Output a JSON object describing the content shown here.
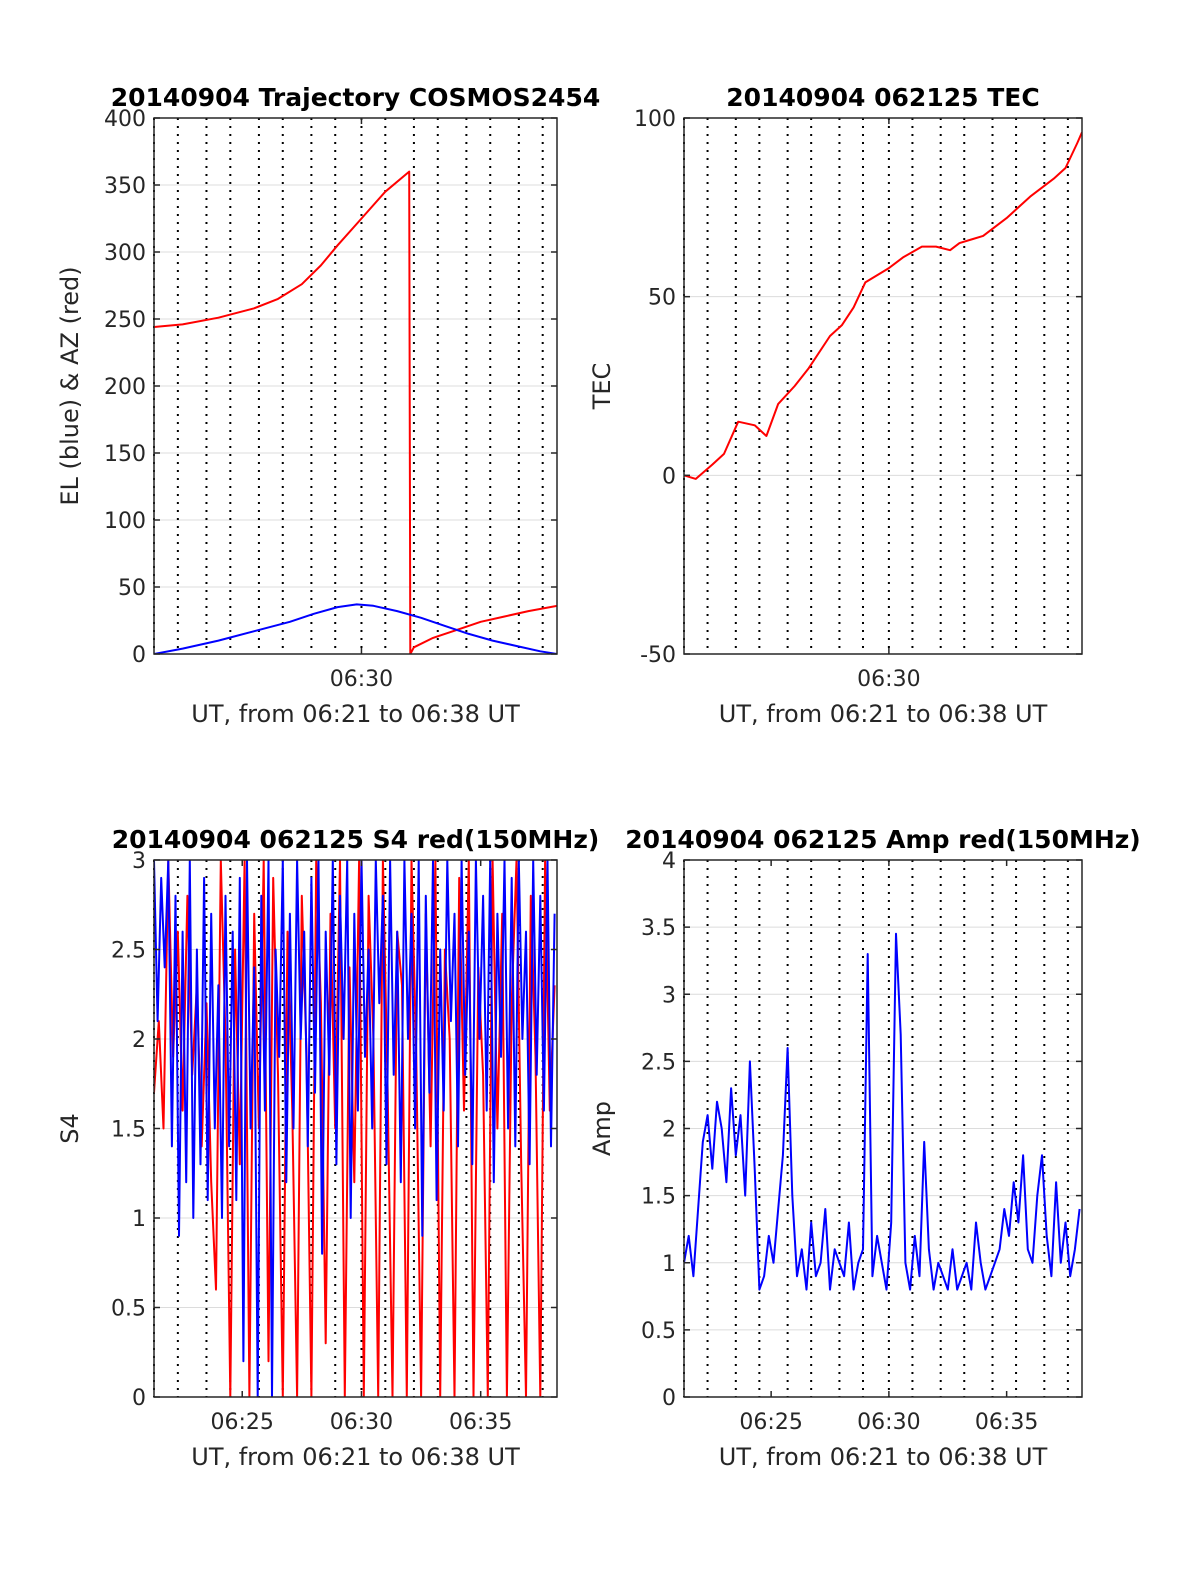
{
  "colors": {
    "red": "#ff0000",
    "blue": "#0000ff",
    "axis": "#262626",
    "grid": "#dcdcdc",
    "vline": "#000000"
  },
  "chart_data": [
    {
      "type": "line",
      "title": "20140904 Trajectory COSMOS2454",
      "xlabel": "UT, from 06:21 to 06:38 UT",
      "ylabel": "EL (blue) & AZ (red)",
      "xlim": [
        21.3,
        38.2
      ],
      "ylim": [
        0,
        400
      ],
      "yticks": [
        0,
        50,
        100,
        150,
        200,
        250,
        300,
        350,
        400
      ],
      "xticks": [
        {
          "v": 30,
          "label": "06:30"
        }
      ],
      "vlines": [
        21.3,
        22.3,
        23.5,
        24.5,
        25.7,
        26.7,
        27.9,
        28.9,
        30.0,
        31.0,
        32.2,
        33.2,
        34.4,
        35.4,
        36.6,
        37.6
      ],
      "series": [
        {
          "name": "AZ",
          "color": "#ff0000",
          "x": [
            21.3,
            22.5,
            24.0,
            25.5,
            26.5,
            27.5,
            28.3,
            29.0,
            30.0,
            31.0,
            32.0,
            32.05,
            32.2,
            33.0,
            34.0,
            35.0,
            36.0,
            37.0,
            38.2
          ],
          "y": [
            244,
            246,
            251,
            258,
            265,
            276,
            290,
            305,
            325,
            345,
            360,
            0,
            5,
            12,
            18,
            24,
            28,
            32,
            36
          ]
        },
        {
          "name": "EL",
          "color": "#0000ff",
          "x": [
            21.3,
            22.5,
            24.0,
            25.5,
            27.0,
            28.0,
            29.0,
            29.8,
            30.5,
            31.5,
            32.5,
            33.5,
            34.5,
            35.5,
            36.5,
            37.5,
            38.2
          ],
          "y": [
            0,
            4,
            10,
            17,
            24,
            30,
            35,
            37,
            36,
            32,
            27,
            21,
            15,
            10,
            6,
            2,
            0
          ]
        }
      ]
    },
    {
      "type": "line",
      "title": "20140904 062125 TEC",
      "xlabel": "UT, from 06:21 to 06:38 UT",
      "ylabel": "TEC",
      "xlim": [
        21.3,
        38.2
      ],
      "ylim": [
        -50,
        100
      ],
      "yticks": [
        -50,
        0,
        50,
        100
      ],
      "xticks": [
        {
          "v": 30,
          "label": "06:30"
        }
      ],
      "vlines": [
        21.3,
        22.3,
        23.5,
        24.5,
        25.7,
        26.7,
        27.9,
        28.9,
        30.0,
        31.0,
        32.2,
        33.2,
        34.4,
        35.4,
        36.6,
        37.6
      ],
      "series": [
        {
          "name": "TEC",
          "color": "#ff0000",
          "x": [
            21.3,
            21.8,
            22.5,
            23.0,
            23.6,
            24.3,
            24.8,
            25.3,
            26.0,
            26.6,
            27.5,
            28.0,
            28.5,
            29.0,
            30.0,
            30.6,
            31.4,
            32.0,
            32.6,
            33.0,
            33.5,
            34.0,
            35.0,
            36.0,
            37.0,
            37.5,
            38.0,
            38.2
          ],
          "y": [
            0,
            -1,
            3,
            6,
            15,
            14,
            11,
            20,
            25,
            30,
            39,
            42,
            47,
            54,
            58,
            61,
            64,
            64,
            63,
            65,
            66,
            67,
            72,
            78,
            83,
            86,
            93,
            96
          ]
        }
      ]
    },
    {
      "type": "line",
      "title": "20140904 062125 S4 red(150MHz)",
      "xlabel": "UT, from 06:21 to 06:38 UT",
      "ylabel": "S4",
      "xlim": [
        21.3,
        38.2
      ],
      "ylim": [
        0,
        3
      ],
      "yticks": [
        0,
        0.5,
        1,
        1.5,
        2,
        2.5,
        3
      ],
      "xticks": [
        {
          "v": 25,
          "label": "06:25"
        },
        {
          "v": 30,
          "label": "06:30"
        },
        {
          "v": 35,
          "label": "06:35"
        }
      ],
      "vlines": [
        21.3,
        22.3,
        23.5,
        24.5,
        25.7,
        26.7,
        27.9,
        28.9,
        30.0,
        31.0,
        32.2,
        33.2,
        34.4,
        35.4,
        36.6,
        37.6
      ],
      "series": [
        {
          "name": "S4 red",
          "color": "#ff0000",
          "x": [
            21.3,
            21.5,
            21.7,
            21.9,
            22.1,
            22.3,
            22.5,
            22.7,
            22.9,
            23.1,
            23.3,
            23.5,
            23.7,
            23.9,
            24.1,
            24.3,
            24.5,
            24.7,
            24.9,
            25.1,
            25.3,
            25.5,
            25.7,
            25.9,
            26.1,
            26.3,
            26.5,
            26.7,
            26.9,
            27.1,
            27.3,
            27.5,
            27.7,
            27.9,
            28.1,
            28.3,
            28.5,
            28.7,
            28.9,
            29.1,
            29.3,
            29.5,
            29.7,
            29.9,
            30.1,
            30.3,
            30.5,
            30.7,
            30.9,
            31.1,
            31.3,
            31.5,
            31.7,
            31.9,
            32.1,
            32.3,
            32.5,
            32.7,
            32.9,
            33.1,
            33.3,
            33.5,
            33.7,
            33.9,
            34.1,
            34.3,
            34.5,
            34.7,
            34.9,
            35.1,
            35.3,
            35.5,
            35.7,
            35.9,
            36.1,
            36.3,
            36.5,
            36.7,
            36.9,
            37.1,
            37.3,
            37.5,
            37.7,
            37.9,
            38.1
          ],
          "y": [
            1.7,
            2.1,
            1.5,
            3.0,
            1.9,
            2.6,
            1.6,
            2.8,
            1.8,
            2.3,
            1.4,
            2.2,
            1.2,
            0.6,
            3.0,
            2.0,
            0.0,
            2.5,
            1.3,
            3.0,
            0.0,
            2.7,
            1.5,
            3.0,
            0.2,
            2.9,
            1.8,
            0.0,
            2.6,
            1.6,
            0.0,
            2.8,
            1.9,
            0.0,
            3.0,
            2.2,
            0.3,
            2.7,
            1.5,
            3.0,
            0.0,
            2.4,
            1.2,
            3.0,
            0.0,
            2.8,
            2.0,
            0.0,
            3.0,
            1.7,
            0.0,
            2.6,
            2.3,
            0.0,
            3.0,
            1.9,
            0.0,
            2.7,
            1.4,
            3.0,
            0.0,
            2.5,
            2.0,
            0.0,
            2.9,
            1.6,
            3.0,
            0.0,
            2.4,
            1.8,
            0.0,
            3.0,
            1.5,
            2.7,
            0.0,
            2.2,
            3.0,
            1.3,
            0.0,
            2.8,
            1.9,
            0.0,
            3.0,
            1.6,
            2.3
          ]
        },
        {
          "name": "S4 blue",
          "color": "#0000ff",
          "x": [
            21.3,
            21.45,
            21.6,
            21.75,
            21.9,
            22.05,
            22.2,
            22.35,
            22.5,
            22.65,
            22.8,
            22.95,
            23.1,
            23.25,
            23.4,
            23.55,
            23.7,
            23.85,
            24.0,
            24.15,
            24.3,
            24.45,
            24.6,
            24.75,
            24.9,
            25.05,
            25.2,
            25.35,
            25.5,
            25.65,
            25.8,
            25.95,
            26.1,
            26.25,
            26.4,
            26.55,
            26.7,
            26.85,
            27.0,
            27.15,
            27.3,
            27.45,
            27.6,
            27.75,
            27.9,
            28.05,
            28.2,
            28.35,
            28.5,
            28.65,
            28.8,
            28.95,
            29.1,
            29.25,
            29.4,
            29.55,
            29.7,
            29.85,
            30.0,
            30.15,
            30.3,
            30.45,
            30.6,
            30.75,
            30.9,
            31.05,
            31.2,
            31.35,
            31.5,
            31.65,
            31.8,
            31.95,
            32.1,
            32.25,
            32.4,
            32.55,
            32.7,
            32.85,
            33.0,
            33.15,
            33.3,
            33.45,
            33.6,
            33.75,
            33.9,
            34.05,
            34.2,
            34.35,
            34.5,
            34.65,
            34.8,
            34.95,
            35.1,
            35.25,
            35.4,
            35.55,
            35.7,
            35.85,
            36.0,
            36.15,
            36.3,
            36.45,
            36.6,
            36.75,
            36.9,
            37.05,
            37.2,
            37.35,
            37.5,
            37.65,
            37.8,
            37.95,
            38.1
          ],
          "y": [
            3.0,
            2.1,
            2.9,
            2.4,
            3.0,
            1.4,
            2.8,
            0.9,
            2.6,
            1.2,
            3.0,
            1.0,
            2.5,
            1.3,
            2.9,
            1.1,
            2.7,
            1.5,
            2.3,
            1.0,
            2.8,
            1.4,
            2.6,
            1.1,
            2.9,
            0.2,
            3.0,
            1.5,
            2.4,
            0.0,
            2.8,
            1.6,
            3.0,
            0.0,
            2.5,
            1.9,
            3.0,
            1.2,
            2.7,
            1.5,
            3.0,
            2.0,
            2.6,
            1.4,
            2.9,
            1.7,
            3.0,
            0.8,
            2.6,
            1.8,
            3.0,
            1.3,
            2.8,
            2.0,
            3.0,
            1.0,
            2.7,
            1.6,
            3.0,
            1.9,
            2.5,
            1.5,
            3.0,
            2.2,
            2.8,
            1.3,
            3.0,
            1.8,
            2.6,
            1.2,
            3.0,
            2.0,
            2.7,
            1.5,
            3.0,
            0.9,
            2.8,
            1.7,
            3.0,
            1.1,
            2.5,
            1.6,
            3.0,
            2.1,
            2.7,
            1.4,
            3.0,
            1.8,
            2.6,
            1.3,
            3.0,
            2.0,
            2.8,
            1.6,
            3.0,
            1.2,
            2.7,
            1.9,
            3.0,
            1.5,
            2.9,
            1.4,
            3.0,
            2.0,
            2.6,
            1.3,
            3.0,
            1.8,
            2.8,
            1.6,
            3.0,
            1.4,
            2.7
          ]
        }
      ]
    },
    {
      "type": "line",
      "title": "20140904 062125 Amp red(150MHz)",
      "xlabel": "UT, from 06:21 to 06:38 UT",
      "ylabel": "Amp",
      "xlim": [
        21.3,
        38.2
      ],
      "ylim": [
        0,
        4
      ],
      "yticks": [
        0,
        0.5,
        1,
        1.5,
        2,
        2.5,
        3,
        3.5,
        4
      ],
      "xticks": [
        {
          "v": 25,
          "label": "06:25"
        },
        {
          "v": 30,
          "label": "06:30"
        },
        {
          "v": 35,
          "label": "06:35"
        }
      ],
      "vlines": [
        21.3,
        22.3,
        23.5,
        24.5,
        25.7,
        26.7,
        27.9,
        28.9,
        30.0,
        31.0,
        32.2,
        33.2,
        34.4,
        35.4,
        36.6,
        37.6
      ],
      "series": [
        {
          "name": "Amp",
          "color": "#0000ff",
          "x": [
            21.3,
            21.5,
            21.7,
            21.9,
            22.1,
            22.3,
            22.5,
            22.7,
            22.9,
            23.1,
            23.3,
            23.5,
            23.7,
            23.9,
            24.1,
            24.3,
            24.5,
            24.7,
            24.9,
            25.1,
            25.3,
            25.5,
            25.7,
            25.9,
            26.1,
            26.3,
            26.5,
            26.7,
            26.9,
            27.1,
            27.3,
            27.5,
            27.7,
            27.9,
            28.1,
            28.3,
            28.5,
            28.7,
            28.9,
            29.1,
            29.3,
            29.5,
            29.7,
            29.9,
            30.1,
            30.3,
            30.5,
            30.7,
            30.9,
            31.1,
            31.3,
            31.5,
            31.7,
            31.9,
            32.1,
            32.3,
            32.5,
            32.7,
            32.9,
            33.1,
            33.3,
            33.5,
            33.7,
            33.9,
            34.1,
            34.3,
            34.5,
            34.7,
            34.9,
            35.1,
            35.3,
            35.5,
            35.7,
            35.9,
            36.1,
            36.3,
            36.5,
            36.7,
            36.9,
            37.1,
            37.3,
            37.5,
            37.7,
            37.9,
            38.1
          ],
          "y": [
            1.0,
            1.2,
            0.9,
            1.4,
            1.9,
            2.1,
            1.7,
            2.2,
            2.0,
            1.6,
            2.3,
            1.8,
            2.1,
            1.5,
            2.5,
            1.7,
            0.8,
            0.9,
            1.2,
            1.0,
            1.4,
            1.8,
            2.6,
            1.5,
            0.9,
            1.1,
            0.8,
            1.3,
            0.9,
            1.0,
            1.4,
            0.8,
            1.1,
            1.0,
            0.9,
            1.3,
            0.8,
            1.0,
            1.1,
            3.3,
            0.9,
            1.2,
            1.0,
            0.8,
            1.3,
            3.45,
            2.7,
            1.0,
            0.8,
            1.2,
            0.9,
            1.9,
            1.1,
            0.8,
            1.0,
            0.9,
            0.8,
            1.1,
            0.8,
            0.9,
            1.0,
            0.8,
            1.3,
            1.0,
            0.8,
            0.9,
            1.0,
            1.1,
            1.4,
            1.2,
            1.6,
            1.3,
            1.8,
            1.1,
            1.0,
            1.5,
            1.8,
            1.2,
            0.9,
            1.6,
            1.0,
            1.3,
            0.9,
            1.1,
            1.4
          ]
        }
      ]
    }
  ]
}
